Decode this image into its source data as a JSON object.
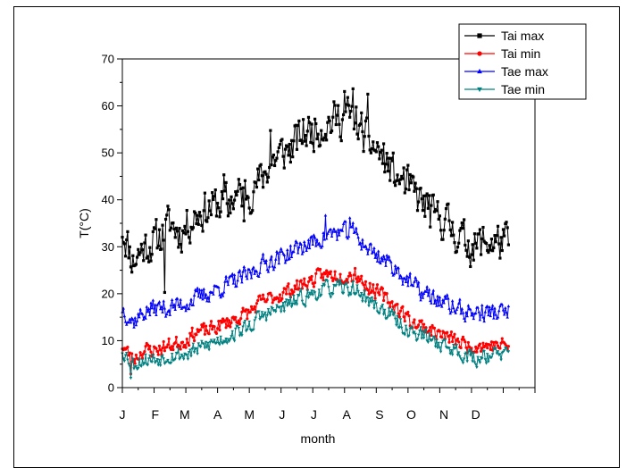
{
  "chart_data": {
    "type": "line",
    "title": "",
    "xlabel": "month",
    "ylabel": "T(°C)",
    "ylim": [
      0,
      70
    ],
    "yticks": [
      0,
      10,
      20,
      30,
      40,
      50,
      60,
      70
    ],
    "xlim": [
      0,
      390
    ],
    "month_labels": [
      "J",
      "F",
      "M",
      "A",
      "M",
      "J",
      "J",
      "A",
      "S",
      "O",
      "N",
      "D"
    ],
    "month_starts": [
      0,
      31,
      59,
      90,
      120,
      151,
      181,
      212,
      243,
      273,
      304,
      334
    ],
    "x_end": 365,
    "legend_position": "top-right",
    "series": [
      {
        "name": "Tai max",
        "color": "#000000",
        "marker": "square",
        "keypoints": [
          [
            0,
            34
          ],
          [
            10,
            27
          ],
          [
            20,
            30
          ],
          [
            31,
            31
          ],
          [
            45,
            35
          ],
          [
            55,
            33
          ],
          [
            59,
            34
          ],
          [
            70,
            37
          ],
          [
            80,
            38
          ],
          [
            90,
            39
          ],
          [
            100,
            40
          ],
          [
            110,
            41
          ],
          [
            120,
            42
          ],
          [
            130,
            44
          ],
          [
            140,
            48
          ],
          [
            151,
            50
          ],
          [
            160,
            51
          ],
          [
            170,
            54
          ],
          [
            181,
            55
          ],
          [
            190,
            56
          ],
          [
            200,
            57
          ],
          [
            212,
            58
          ],
          [
            220,
            57
          ],
          [
            230,
            53
          ],
          [
            243,
            50
          ],
          [
            255,
            46
          ],
          [
            265,
            44
          ],
          [
            273,
            42
          ],
          [
            285,
            39
          ],
          [
            295,
            36
          ],
          [
            304,
            36
          ],
          [
            315,
            33
          ],
          [
            325,
            31
          ],
          [
            334,
            30
          ],
          [
            340,
            31
          ]
        ],
        "noise": 4.2,
        "spikes": [
          [
            40,
            -11
          ],
          [
            96,
            2
          ],
          [
            100,
            -4
          ],
          [
            115,
            -8
          ],
          [
            125,
            -2
          ],
          [
            140,
            7
          ],
          [
            210,
            5
          ],
          [
            218,
            4
          ],
          [
            225,
            -2
          ],
          [
            232,
            5
          ],
          [
            260,
            -3
          ],
          [
            290,
            2
          ]
        ],
        "seed": 11
      },
      {
        "name": "Tai min",
        "color": "#ff0000",
        "marker": "circle",
        "keypoints": [
          [
            0,
            9
          ],
          [
            10,
            6
          ],
          [
            20,
            8
          ],
          [
            31,
            8
          ],
          [
            45,
            9
          ],
          [
            59,
            10
          ],
          [
            70,
            12
          ],
          [
            80,
            12
          ],
          [
            90,
            13
          ],
          [
            100,
            14
          ],
          [
            110,
            15
          ],
          [
            120,
            16
          ],
          [
            130,
            18
          ],
          [
            140,
            19
          ],
          [
            151,
            20
          ],
          [
            160,
            21
          ],
          [
            170,
            22
          ],
          [
            181,
            23
          ],
          [
            190,
            24
          ],
          [
            200,
            24
          ],
          [
            212,
            24
          ],
          [
            220,
            24
          ],
          [
            230,
            22
          ],
          [
            243,
            20
          ],
          [
            255,
            18
          ],
          [
            265,
            16
          ],
          [
            273,
            14
          ],
          [
            285,
            13
          ],
          [
            295,
            12
          ],
          [
            304,
            11
          ],
          [
            315,
            10
          ],
          [
            325,
            9
          ],
          [
            334,
            9
          ],
          [
            340,
            9
          ]
        ],
        "noise": 1.6,
        "spikes": [
          [
            8,
            -3
          ],
          [
            220,
            2
          ]
        ],
        "seed": 23
      },
      {
        "name": "Tae  max",
        "color": "#0000ff",
        "marker": "triangle-up",
        "keypoints": [
          [
            0,
            17
          ],
          [
            10,
            14
          ],
          [
            20,
            16
          ],
          [
            31,
            17
          ],
          [
            45,
            17
          ],
          [
            59,
            18
          ],
          [
            70,
            19
          ],
          [
            80,
            20
          ],
          [
            90,
            21
          ],
          [
            100,
            22
          ],
          [
            110,
            23
          ],
          [
            120,
            24
          ],
          [
            130,
            26
          ],
          [
            140,
            27
          ],
          [
            151,
            28
          ],
          [
            160,
            29
          ],
          [
            170,
            30
          ],
          [
            181,
            31
          ],
          [
            190,
            32
          ],
          [
            200,
            33
          ],
          [
            212,
            33
          ],
          [
            220,
            33
          ],
          [
            230,
            30
          ],
          [
            243,
            28
          ],
          [
            255,
            26
          ],
          [
            265,
            24
          ],
          [
            273,
            22
          ],
          [
            285,
            20
          ],
          [
            295,
            19
          ],
          [
            304,
            18
          ],
          [
            315,
            17
          ],
          [
            325,
            16
          ],
          [
            334,
            16
          ],
          [
            340,
            16
          ]
        ],
        "noise": 2.0,
        "spikes": [
          [
            192,
            5
          ],
          [
            215,
            4
          ]
        ],
        "seed": 37
      },
      {
        "name": "Tae min",
        "color": "#008080",
        "marker": "triangle-down",
        "keypoints": [
          [
            0,
            8
          ],
          [
            10,
            5
          ],
          [
            20,
            6
          ],
          [
            31,
            6
          ],
          [
            45,
            7
          ],
          [
            59,
            7
          ],
          [
            70,
            8
          ],
          [
            80,
            9
          ],
          [
            90,
            10
          ],
          [
            100,
            11
          ],
          [
            110,
            12
          ],
          [
            120,
            13
          ],
          [
            130,
            15
          ],
          [
            140,
            16
          ],
          [
            151,
            17
          ],
          [
            160,
            18
          ],
          [
            170,
            19
          ],
          [
            181,
            20
          ],
          [
            190,
            21
          ],
          [
            200,
            21
          ],
          [
            212,
            21
          ],
          [
            220,
            21
          ],
          [
            230,
            19
          ],
          [
            243,
            17
          ],
          [
            255,
            15
          ],
          [
            265,
            13
          ],
          [
            273,
            12
          ],
          [
            285,
            11
          ],
          [
            295,
            10
          ],
          [
            304,
            9
          ],
          [
            315,
            8
          ],
          [
            325,
            7
          ],
          [
            334,
            6
          ],
          [
            340,
            7
          ]
        ],
        "noise": 1.7,
        "spikes": [
          [
            8,
            -3
          ],
          [
            270,
            -2
          ],
          [
            335,
            -2
          ]
        ],
        "seed": 53
      }
    ]
  }
}
